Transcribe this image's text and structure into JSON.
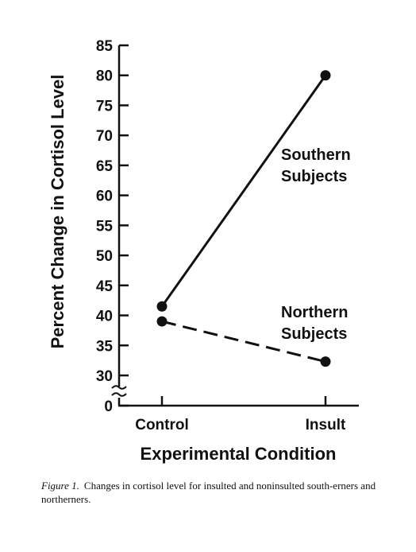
{
  "chart_data": {
    "type": "line",
    "xlabel": "Experimental Condition",
    "ylabel": "Percent Change in Cortisol Level",
    "categories": [
      "Control",
      "Insult"
    ],
    "y_ticks": [
      0,
      30,
      35,
      40,
      45,
      50,
      55,
      60,
      65,
      70,
      75,
      80,
      85
    ],
    "ylim": [
      30,
      85
    ],
    "axis_break": true,
    "grid": false,
    "series": [
      {
        "name": "Southern Subjects",
        "name_lines": [
          "Southern",
          "Subjects"
        ],
        "values": [
          41.5,
          80
        ],
        "line_style": "solid",
        "color": "#111111"
      },
      {
        "name": "Northern Subjects",
        "name_lines": [
          "Northern",
          "Subjects"
        ],
        "values": [
          39,
          32.3
        ],
        "line_style": "dashed",
        "color": "#111111"
      }
    ]
  },
  "caption": {
    "label": "Figure 1.",
    "text": "Changes in cortisol level for insulted and noninsulted south-erners and northerners."
  }
}
